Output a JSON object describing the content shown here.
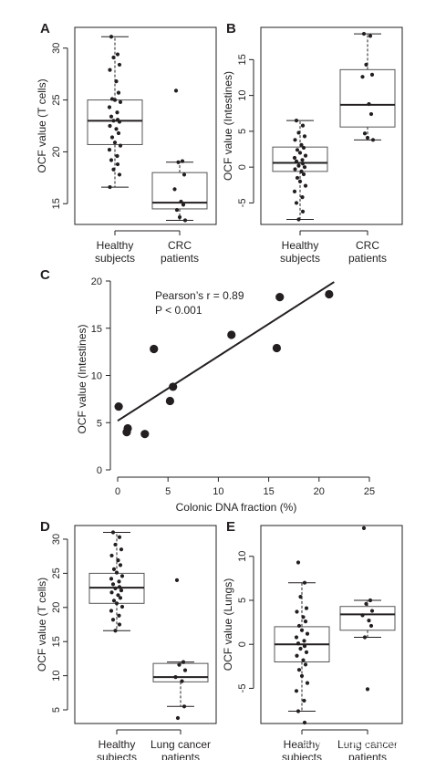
{
  "watermark": "知乎 @我就是兵兵别闹",
  "chart_data": [
    {
      "panel": "A",
      "type": "boxplot",
      "ylabel": "OCF value (T cells)",
      "yticks": [
        15,
        20,
        25,
        30
      ],
      "ylim": [
        13,
        32
      ],
      "groups": [
        {
          "label_lines": [
            "Healthy",
            "subjects"
          ],
          "box": {
            "min": 16.6,
            "q1": 20.7,
            "median": 23.0,
            "q3": 25.0,
            "max": 31.1
          },
          "points": [
            31.1,
            29.4,
            29.1,
            28.4,
            27.9,
            26.8,
            25.7,
            25.1,
            25.0,
            24.8,
            24.3,
            23.8,
            23.4,
            23.1,
            23.0,
            22.9,
            22.5,
            22.2,
            21.8,
            21.4,
            20.9,
            20.6,
            20.2,
            19.6,
            19.2,
            18.8,
            18.3,
            17.8,
            16.6
          ]
        },
        {
          "label_lines": [
            "CRC",
            "patients"
          ],
          "box": {
            "min": 13.4,
            "q1": 14.5,
            "median": 15.1,
            "q3": 18.0,
            "max": 19.0
          },
          "points": [
            25.9,
            19.1,
            19.0,
            17.8,
            16.4,
            15.2,
            14.9,
            14.4,
            13.7,
            13.4
          ]
        }
      ]
    },
    {
      "panel": "B",
      "type": "boxplot",
      "ylabel": "OCF value (Intestines)",
      "yticks": [
        -5,
        0,
        5,
        10,
        15
      ],
      "ylim": [
        -8,
        19.5
      ],
      "groups": [
        {
          "label_lines": [
            "Healthy",
            "subjects"
          ],
          "box": {
            "min": -7.3,
            "q1": -0.6,
            "median": 0.6,
            "q3": 2.8,
            "max": 6.5
          },
          "points": [
            6.5,
            5.8,
            4.8,
            4.3,
            3.8,
            3.1,
            2.7,
            2.4,
            2.0,
            1.6,
            1.3,
            1.0,
            0.8,
            0.5,
            0.2,
            0.0,
            -0.3,
            -0.6,
            -1.0,
            -1.5,
            -2.0,
            -2.6,
            -3.4,
            -4.2,
            -5.0,
            -6.2,
            -7.3
          ]
        },
        {
          "label_lines": [
            "CRC",
            "patients"
          ],
          "box": {
            "min": 3.8,
            "q1": 5.6,
            "median": 8.7,
            "q3": 13.6,
            "max": 18.6
          },
          "points": [
            18.6,
            18.3,
            14.3,
            12.9,
            12.6,
            8.8,
            7.4,
            4.7,
            4.1,
            3.8
          ]
        }
      ]
    },
    {
      "panel": "C",
      "type": "scatter",
      "xlabel": "Colonic DNA fraction (%)",
      "ylabel": "OCF value (Intestines)",
      "xticks": [
        0,
        5,
        10,
        15,
        20,
        25
      ],
      "yticks": [
        0,
        5,
        10,
        15,
        20
      ],
      "xlim": [
        0,
        25
      ],
      "ylim": [
        0,
        20
      ],
      "annotations": [
        "Pearson’s r = 0.89",
        "P < 0.001"
      ],
      "points": [
        {
          "x": 0.1,
          "y": 6.7
        },
        {
          "x": 0.9,
          "y": 4.0
        },
        {
          "x": 1.0,
          "y": 4.4
        },
        {
          "x": 2.7,
          "y": 3.8
        },
        {
          "x": 3.6,
          "y": 12.8
        },
        {
          "x": 5.2,
          "y": 7.3
        },
        {
          "x": 5.5,
          "y": 8.8
        },
        {
          "x": 11.3,
          "y": 14.3
        },
        {
          "x": 15.8,
          "y": 12.9
        },
        {
          "x": 16.1,
          "y": 18.3
        },
        {
          "x": 21.0,
          "y": 18.6
        }
      ],
      "fit_line": {
        "x1": 0,
        "y1": 5.2,
        "x2": 21.5,
        "y2": 19.9
      }
    },
    {
      "panel": "D",
      "type": "boxplot",
      "ylabel": "OCF value (T cells)",
      "yticks": [
        5,
        10,
        15,
        20,
        25,
        30
      ],
      "ylim": [
        3,
        32
      ],
      "groups": [
        {
          "label_lines": [
            "Healthy",
            "subjects"
          ],
          "box": {
            "min": 16.6,
            "q1": 20.6,
            "median": 22.9,
            "q3": 25.0,
            "max": 31.0
          },
          "points": [
            31.0,
            30.3,
            29.2,
            28.5,
            27.6,
            26.9,
            26.2,
            25.6,
            25.1,
            24.6,
            24.2,
            23.8,
            23.4,
            23.0,
            22.8,
            22.5,
            22.2,
            21.8,
            21.4,
            21.0,
            20.6,
            20.1,
            19.5,
            18.8,
            18.2,
            17.5,
            16.6
          ]
        },
        {
          "label_lines": [
            "Lung cancer",
            "patients"
          ],
          "box": {
            "min": 5.5,
            "q1": 9.1,
            "median": 9.8,
            "q3": 11.8,
            "max": 12.0
          },
          "points": [
            24.0,
            12.0,
            11.6,
            10.8,
            9.8,
            9.2,
            5.5,
            3.8
          ]
        }
      ]
    },
    {
      "panel": "E",
      "type": "boxplot",
      "ylabel": "OCF value (Lungs)",
      "yticks": [
        -5,
        0,
        5,
        10
      ],
      "ylim": [
        -9,
        13.5
      ],
      "groups": [
        {
          "label_lines": [
            "Healthy",
            "subjects"
          ],
          "box": {
            "min": -7.6,
            "q1": -2.0,
            "median": 0.0,
            "q3": 2.0,
            "max": 7.0
          },
          "points": [
            9.3,
            7.0,
            5.4,
            4.1,
            3.7,
            3.1,
            2.6,
            2.1,
            1.6,
            1.2,
            0.8,
            0.4,
            0.1,
            -0.2,
            -0.5,
            -0.9,
            -1.3,
            -1.8,
            -2.3,
            -2.9,
            -3.6,
            -4.4,
            -5.3,
            -6.4,
            -7.6,
            -8.9
          ]
        },
        {
          "label_lines": [
            "Lung cancer",
            "patients"
          ],
          "box": {
            "min": 0.8,
            "q1": 1.6,
            "median": 3.4,
            "q3": 4.3,
            "max": 5.0
          },
          "points": [
            13.2,
            5.0,
            4.6,
            3.8,
            3.3,
            2.7,
            2.1,
            0.8,
            -5.1
          ]
        }
      ]
    }
  ]
}
